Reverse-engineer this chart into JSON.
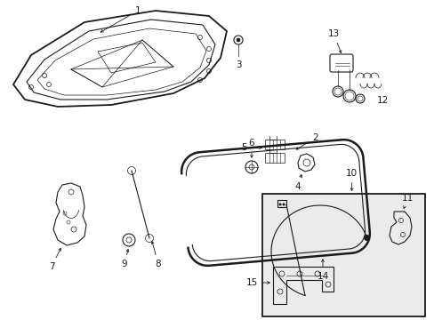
{
  "bg_color": "#ffffff",
  "inset_bg": "#eeeeee",
  "line_color": "#1a1a1a",
  "label_color": "#000000",
  "lw_main": 1.3,
  "lw_med": 0.8,
  "lw_thin": 0.5,
  "label_fs": 7.5
}
